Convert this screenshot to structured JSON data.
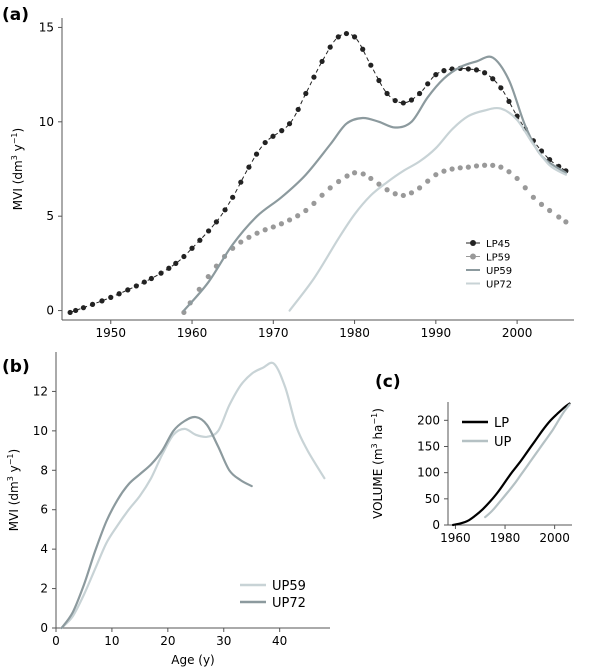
{
  "chart_data": [
    {
      "panel": "(a)",
      "type": "line",
      "ylabel": "MVI (dm³ y⁻¹)",
      "ylabel_parts": {
        "pre": "MVI (dm",
        "sup1": "3",
        "mid": " y",
        "sup2": "−1",
        "post": ")"
      },
      "xlim": [
        1944,
        2007
      ],
      "ylim": [
        -0.5,
        15.5
      ],
      "xticks": [
        1950,
        1960,
        1970,
        1980,
        1990,
        2000
      ],
      "yticks": [
        0,
        5,
        10,
        15
      ],
      "legend": [
        "LP45",
        "LP59",
        "UP59",
        "UP72"
      ],
      "series": [
        {
          "name": "LP45",
          "style": "dotted-dash-markers",
          "color": "#222222",
          "x": [
            1945,
            1950,
            1955,
            1958,
            1960,
            1963,
            1965,
            1967,
            1969,
            1972,
            1974,
            1976,
            1978,
            1980,
            1982,
            1984,
            1986,
            1988,
            1990,
            1992,
            1994,
            1996,
            1998,
            2000,
            2002,
            2004,
            2006
          ],
          "y": [
            -0.1,
            0.7,
            1.7,
            2.5,
            3.3,
            4.7,
            6.0,
            7.6,
            8.9,
            9.9,
            11.5,
            13.2,
            14.5,
            14.5,
            13.0,
            11.5,
            11.0,
            11.5,
            12.5,
            12.8,
            12.8,
            12.6,
            11.8,
            10.3,
            9.0,
            8.0,
            7.4
          ]
        },
        {
          "name": "LP59",
          "style": "dots",
          "color": "#999999",
          "x": [
            1959,
            1962,
            1965,
            1968,
            1971,
            1974,
            1977,
            1980,
            1982,
            1984,
            1986,
            1988,
            1990,
            1992,
            1994,
            1996,
            1998,
            2000,
            2002,
            2004,
            2006
          ],
          "y": [
            -0.1,
            1.8,
            3.3,
            4.1,
            4.6,
            5.3,
            6.5,
            7.3,
            7.0,
            6.4,
            6.1,
            6.5,
            7.2,
            7.5,
            7.6,
            7.7,
            7.6,
            7.0,
            6.0,
            5.3,
            4.7
          ]
        },
        {
          "name": "UP59",
          "style": "line",
          "color": "#8c9a9e",
          "x": [
            1959,
            1962,
            1965,
            1968,
            1971,
            1974,
            1977,
            1979,
            1981,
            1983,
            1985,
            1987,
            1989,
            1991,
            1993,
            1995,
            1997,
            1999,
            2001,
            2003,
            2006
          ],
          "y": [
            0,
            1.5,
            3.5,
            5.0,
            6.0,
            7.2,
            8.8,
            9.9,
            10.2,
            10.0,
            9.7,
            10.0,
            11.3,
            12.3,
            12.9,
            13.2,
            13.4,
            12.2,
            9.8,
            8.2,
            7.3
          ]
        },
        {
          "name": "UP72",
          "style": "line",
          "color": "#c8d3d6",
          "x": [
            1972,
            1975,
            1978,
            1980,
            1982,
            1984,
            1986,
            1988,
            1990,
            1992,
            1994,
            1996,
            1998,
            2000,
            2002,
            2004,
            2006
          ],
          "y": [
            0,
            1.7,
            3.8,
            5.1,
            6.1,
            6.8,
            7.4,
            7.9,
            8.6,
            9.6,
            10.3,
            10.6,
            10.7,
            10.1,
            8.8,
            7.7,
            7.2
          ]
        }
      ]
    },
    {
      "panel": "(b)",
      "type": "line",
      "xlabel": "Age (y)",
      "ylabel": "MVI (dm³ y⁻¹)",
      "ylabel_parts": {
        "pre": "MVI (dm",
        "sup1": "3",
        "mid": " y",
        "sup2": "−1",
        "post": ")"
      },
      "xlim": [
        0,
        49
      ],
      "ylim": [
        0,
        14
      ],
      "xticks": [
        0,
        10,
        20,
        30,
        40
      ],
      "yticks": [
        0,
        2,
        4,
        6,
        8,
        10,
        12
      ],
      "legend": [
        "UP59",
        "UP72"
      ],
      "series": [
        {
          "name": "UP59",
          "style": "line",
          "color": "#c8d3d6",
          "x": [
            1,
            3,
            5,
            7,
            9,
            11,
            13,
            15,
            17,
            19,
            21,
            23,
            25,
            27,
            29,
            31,
            33,
            35,
            37,
            39,
            41,
            43,
            45,
            48
          ],
          "y": [
            0,
            0.6,
            1.7,
            3.0,
            4.3,
            5.2,
            6.0,
            6.7,
            7.6,
            8.8,
            9.8,
            10.1,
            9.8,
            9.7,
            10.0,
            11.3,
            12.3,
            12.9,
            13.2,
            13.4,
            12.2,
            10.2,
            9.0,
            7.6
          ]
        },
        {
          "name": "UP72",
          "style": "line",
          "color": "#8c9a9e",
          "x": [
            1,
            3,
            5,
            7,
            9,
            11,
            13,
            15,
            17,
            19,
            21,
            23,
            25,
            27,
            29,
            31,
            33,
            35
          ],
          "y": [
            0,
            0.8,
            2.2,
            3.9,
            5.4,
            6.5,
            7.3,
            7.8,
            8.3,
            9.0,
            10.0,
            10.5,
            10.7,
            10.3,
            9.2,
            8.0,
            7.5,
            7.2
          ]
        }
      ]
    },
    {
      "panel": "(c)",
      "type": "line",
      "ylabel": "VOLUME (m³ ha⁻¹)",
      "ylabel_parts": {
        "pre": "VOLUME (m",
        "sup1": "3",
        "mid": " ha",
        "sup2": "−1",
        "post": ")"
      },
      "xlim": [
        1957,
        2007
      ],
      "ylim": [
        0,
        235
      ],
      "xticks": [
        1960,
        1980,
        2000
      ],
      "yticks": [
        0,
        50,
        100,
        150,
        200
      ],
      "legend": [
        "LP",
        "UP"
      ],
      "series": [
        {
          "name": "LP",
          "style": "line",
          "color": "#000000",
          "x": [
            1959,
            1962,
            1965,
            1968,
            1971,
            1974,
            1977,
            1980,
            1983,
            1986,
            1989,
            1992,
            1995,
            1998,
            2001,
            2004,
            2006
          ],
          "y": [
            0,
            3,
            8,
            18,
            30,
            45,
            62,
            82,
            102,
            120,
            140,
            160,
            180,
            198,
            212,
            225,
            232
          ]
        },
        {
          "name": "UP",
          "style": "line",
          "color": "#b5c1c4",
          "x": [
            1972,
            1975,
            1978,
            1981,
            1984,
            1987,
            1990,
            1993,
            1996,
            1999,
            2002,
            2004,
            2006
          ],
          "y": [
            15,
            28,
            45,
            62,
            80,
            100,
            120,
            140,
            160,
            180,
            203,
            218,
            230
          ]
        }
      ]
    }
  ]
}
